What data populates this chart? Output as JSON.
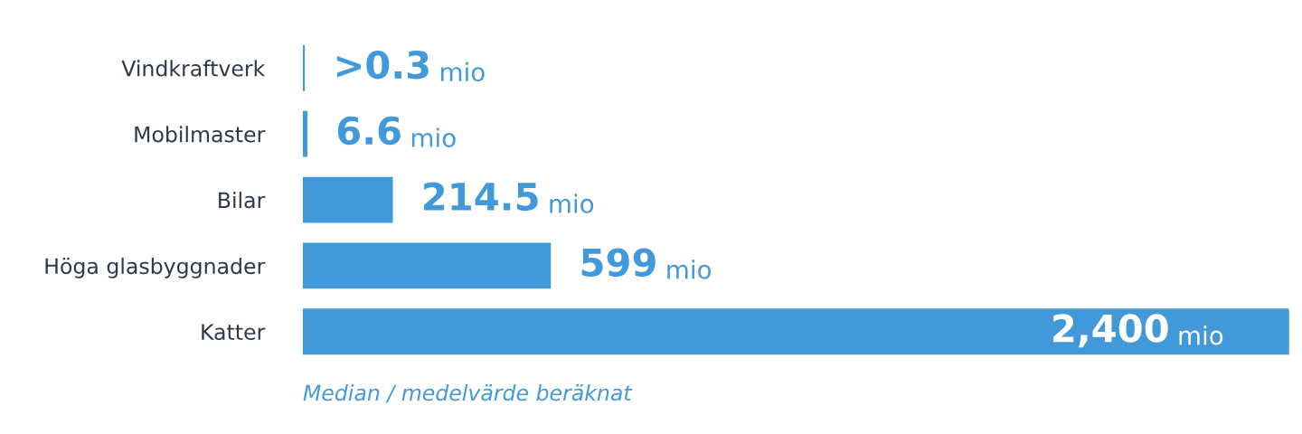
{
  "chart_data": {
    "type": "bar",
    "orientation": "horizontal",
    "categories": [
      "Vindkraftverk",
      "Mobilmaster",
      "Bilar",
      "Höga glasbyggnader",
      "Katter"
    ],
    "values": [
      0.3,
      6.6,
      214.5,
      599,
      2400
    ],
    "value_labels": [
      ">0.3 mio",
      "6.6 mio",
      "214.5 mio",
      "599 mio",
      "2,400 mio"
    ],
    "color": "#4299d9",
    "xlim": [
      0,
      2400
    ],
    "tick_labels": "y",
    "grid": false,
    "legend": false,
    "annotations": [
      "Median / medelvärde beräknat"
    ]
  }
}
